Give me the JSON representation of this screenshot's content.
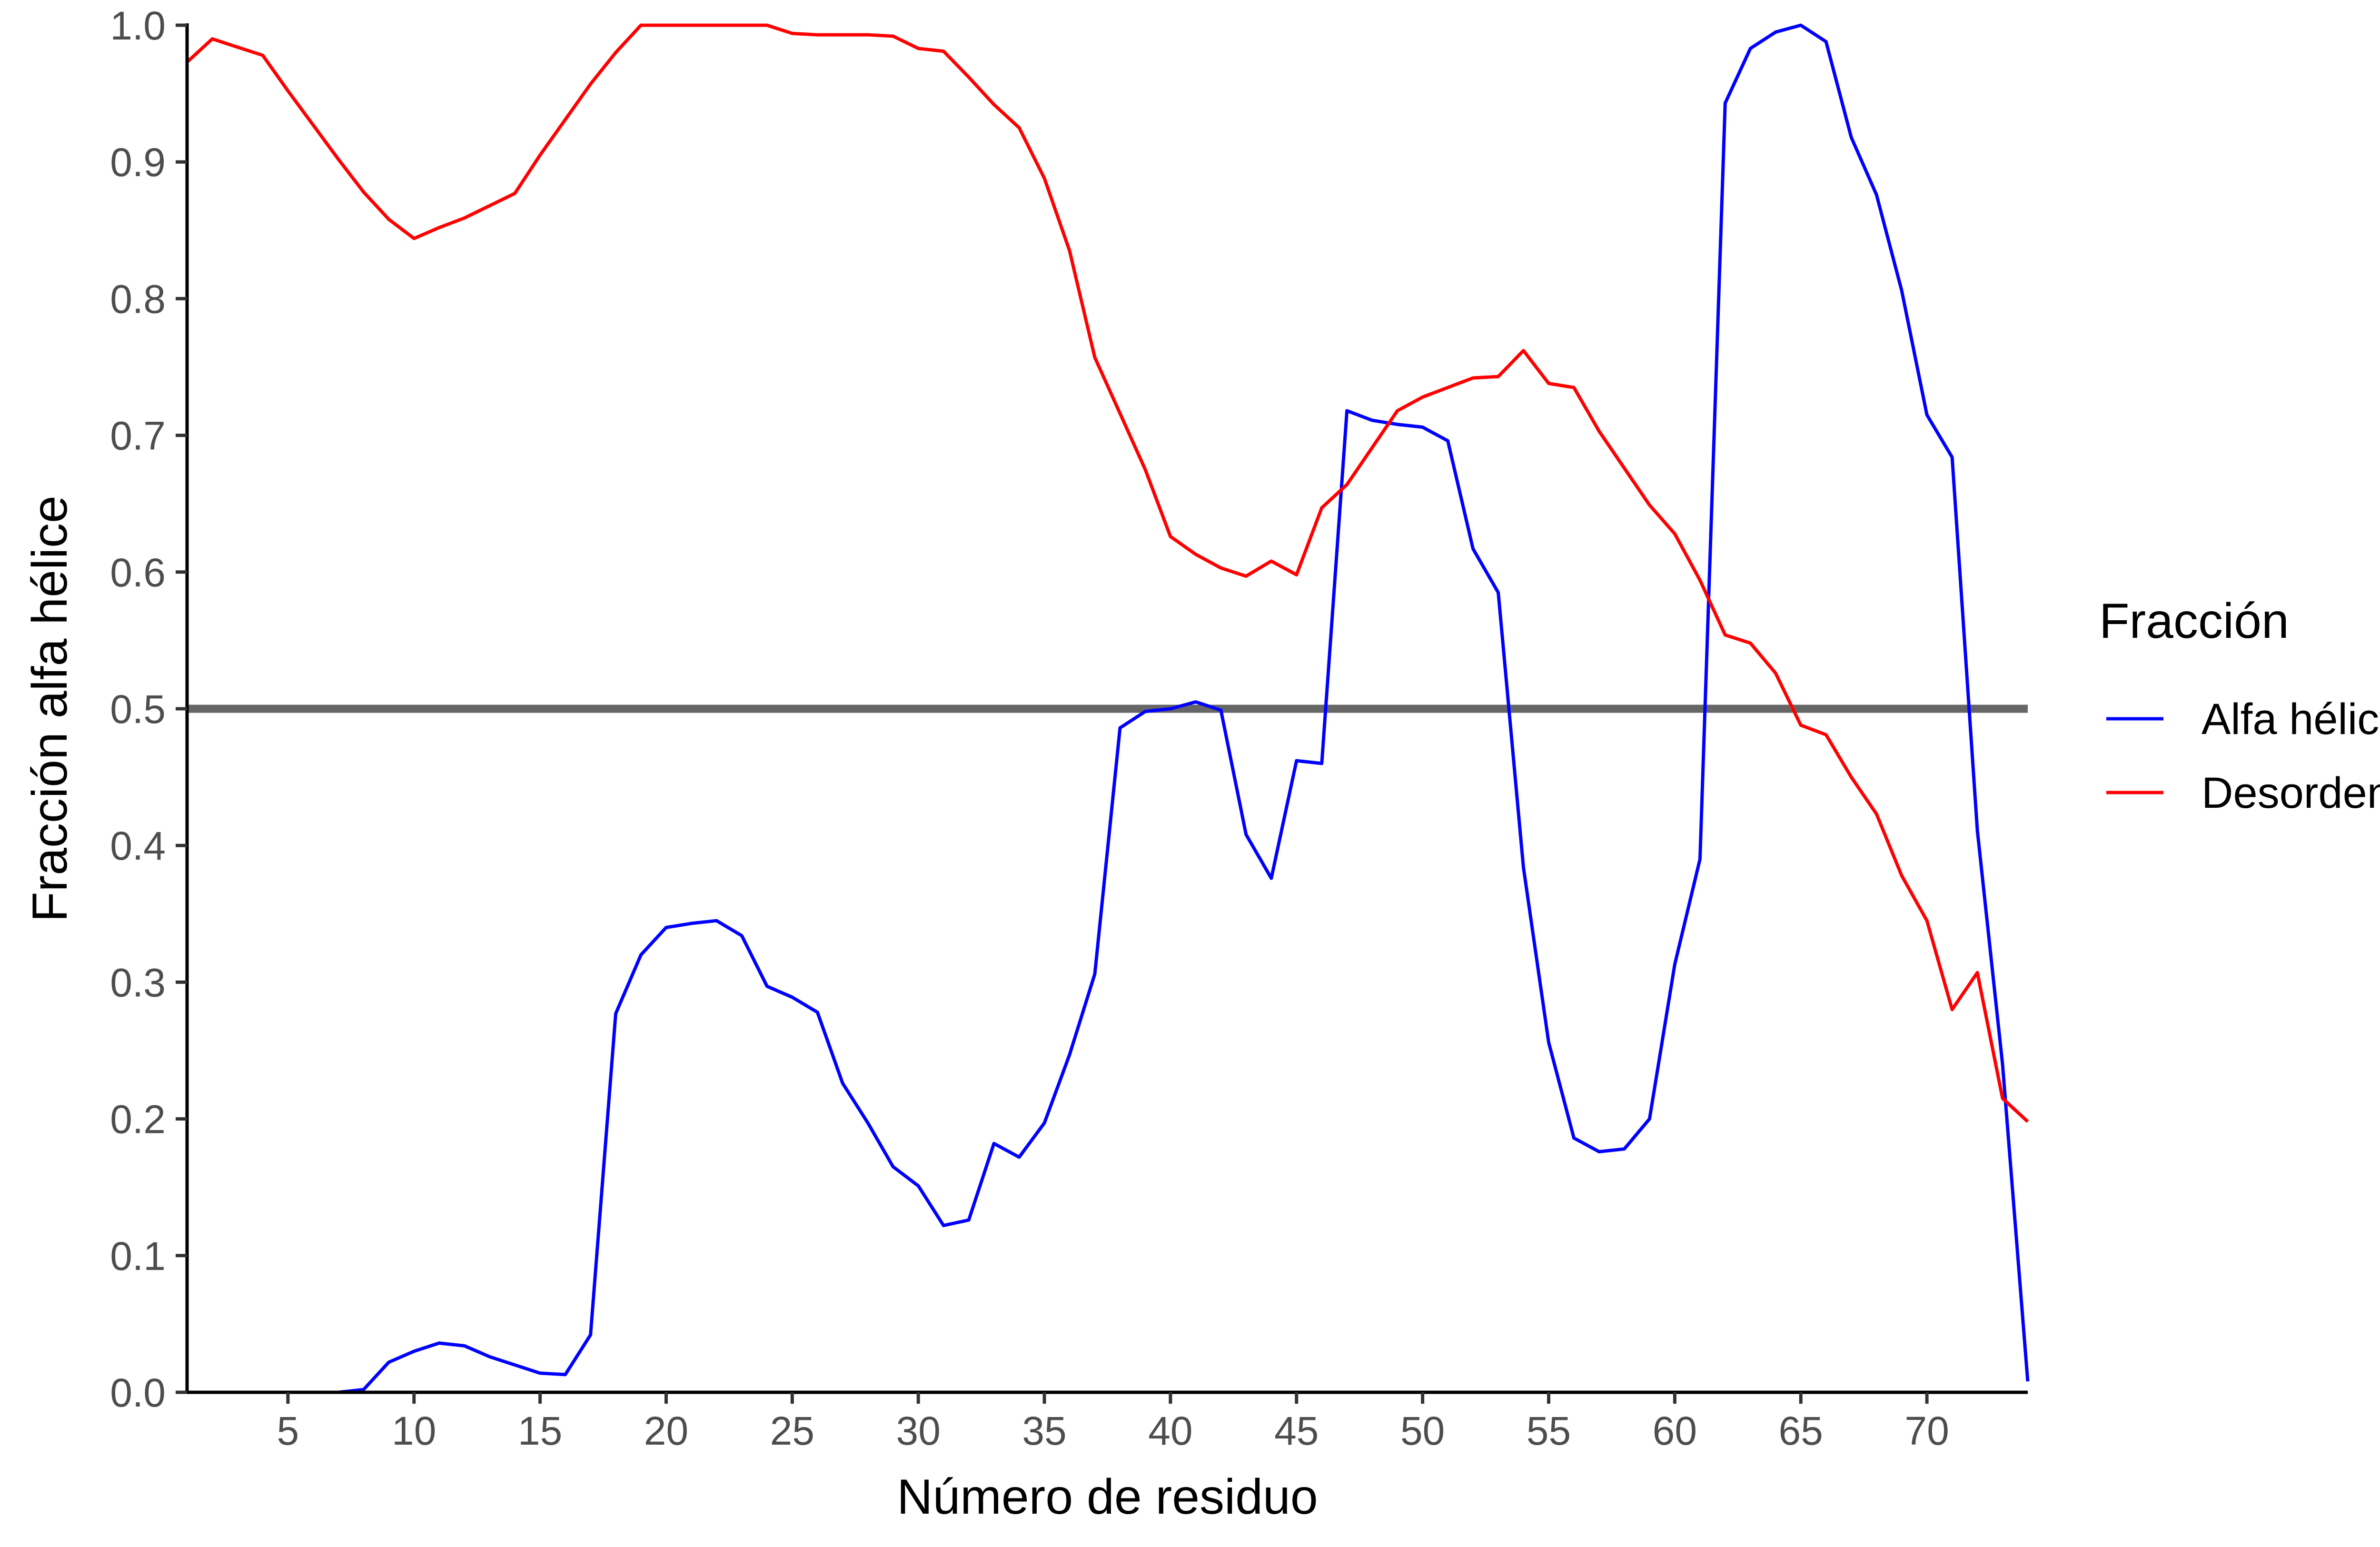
{
  "chart_data": {
    "type": "line",
    "title": "",
    "xlabel": "Número de residuo",
    "ylabel": "Fracción alfa hélice",
    "xlim": [
      1,
      74
    ],
    "ylim": [
      0,
      1
    ],
    "xticks": [
      5,
      10,
      15,
      20,
      25,
      30,
      35,
      40,
      45,
      50,
      55,
      60,
      65,
      70
    ],
    "xtick_labels": [
      "5",
      "10",
      "15",
      "20",
      "25",
      "30",
      "35",
      "40",
      "45",
      "50",
      "55",
      "60",
      "65",
      "70"
    ],
    "yticks": [
      0,
      0.1,
      0.2,
      0.3,
      0.4,
      0.5,
      0.6,
      0.7,
      0.8,
      0.9,
      1.0
    ],
    "ytick_labels": [
      "0.0",
      "0.1",
      "0.2",
      "0.3",
      "0.4",
      "0.5",
      "0.6",
      "0.7",
      "0.8",
      "0.9",
      "1.0"
    ],
    "grid": false,
    "legend": {
      "title": "Fracción",
      "position": "right"
    },
    "reference_line": {
      "y": 0.5,
      "color": "#666666"
    },
    "x": [
      1,
      2,
      3,
      4,
      5,
      6,
      7,
      8,
      9,
      10,
      11,
      12,
      13,
      14,
      15,
      16,
      17,
      18,
      19,
      20,
      21,
      22,
      23,
      24,
      25,
      26,
      27,
      28,
      29,
      30,
      31,
      32,
      33,
      34,
      35,
      36,
      37,
      38,
      39,
      40,
      41,
      42,
      43,
      44,
      45,
      46,
      47,
      48,
      49,
      50,
      51,
      52,
      53,
      54,
      55,
      56,
      57,
      58,
      59,
      60,
      61,
      62,
      63,
      64,
      65,
      66,
      67,
      68,
      69,
      70,
      71,
      72,
      73,
      74
    ],
    "series": [
      {
        "name": "Alfa hélice",
        "color": "#0000FF",
        "values": [
          0,
          0,
          0,
          0,
          0,
          0,
          0,
          0.002,
          0.022,
          0.03,
          0.036,
          0.034,
          0.026,
          0.02,
          0.014,
          0.013,
          0.042,
          0.277,
          0.32,
          0.34,
          0.343,
          0.345,
          0.334,
          0.297,
          0.289,
          0.278,
          0.226,
          0.197,
          0.165,
          0.151,
          0.122,
          0.126,
          0.182,
          0.172,
          0.197,
          0.247,
          0.306,
          0.486,
          0.498,
          0.5,
          0.505,
          0.499,
          0.408,
          0.376,
          0.462,
          0.46,
          0.718,
          0.711,
          0.708,
          0.706,
          0.696,
          0.617,
          0.585,
          0.384,
          0.256,
          0.186,
          0.176,
          0.178,
          0.2,
          0.313,
          0.39,
          0.943,
          0.983,
          0.995,
          1.0,
          0.988,
          0.918,
          0.876,
          0.806,
          0.715,
          0.684,
          0.411,
          0.24,
          0.008
        ]
      },
      {
        "name": "Desorden",
        "color": "#FF0000",
        "values": [
          0.973,
          0.99,
          0.984,
          0.978,
          0.952,
          0.927,
          0.902,
          0.878,
          0.858,
          0.844,
          0.852,
          0.859,
          0.868,
          0.877,
          0.905,
          0.931,
          0.957,
          0.98,
          1.0,
          1.0,
          1.0,
          1.0,
          1.0,
          1.0,
          0.994,
          0.993,
          0.993,
          0.993,
          0.992,
          0.983,
          0.981,
          0.962,
          0.942,
          0.925,
          0.888,
          0.835,
          0.757,
          0.716,
          0.675,
          0.626,
          0.613,
          0.603,
          0.597,
          0.608,
          0.598,
          0.647,
          0.664,
          0.691,
          0.718,
          0.728,
          0.735,
          0.742,
          0.743,
          0.762,
          0.738,
          0.735,
          0.703,
          0.676,
          0.649,
          0.628,
          0.594,
          0.554,
          0.548,
          0.526,
          0.488,
          0.481,
          0.45,
          0.423,
          0.378,
          0.345,
          0.28,
          0.307,
          0.215,
          0.198
        ]
      }
    ]
  }
}
